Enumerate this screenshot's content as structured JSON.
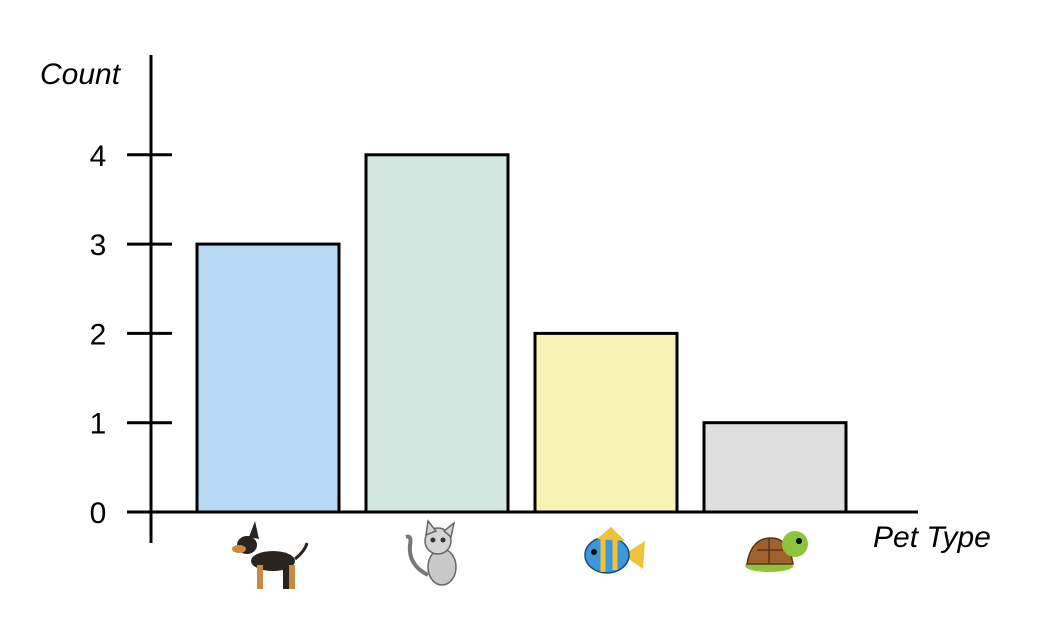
{
  "chart_data": {
    "type": "bar",
    "category_icons": [
      "dog-icon",
      "cat-icon",
      "fish-icon",
      "turtle-icon"
    ],
    "values": [
      3,
      4,
      2,
      1
    ],
    "colors": [
      "#b8d9f3",
      "#d2e7df",
      "#f7f3b5",
      "#dedede"
    ],
    "title": "",
    "xlabel": "Pet Type",
    "ylabel": "Count",
    "ylim": [
      0,
      4
    ],
    "yticks": [
      "0",
      "1",
      "2",
      "3",
      "4"
    ],
    "grid": false
  }
}
